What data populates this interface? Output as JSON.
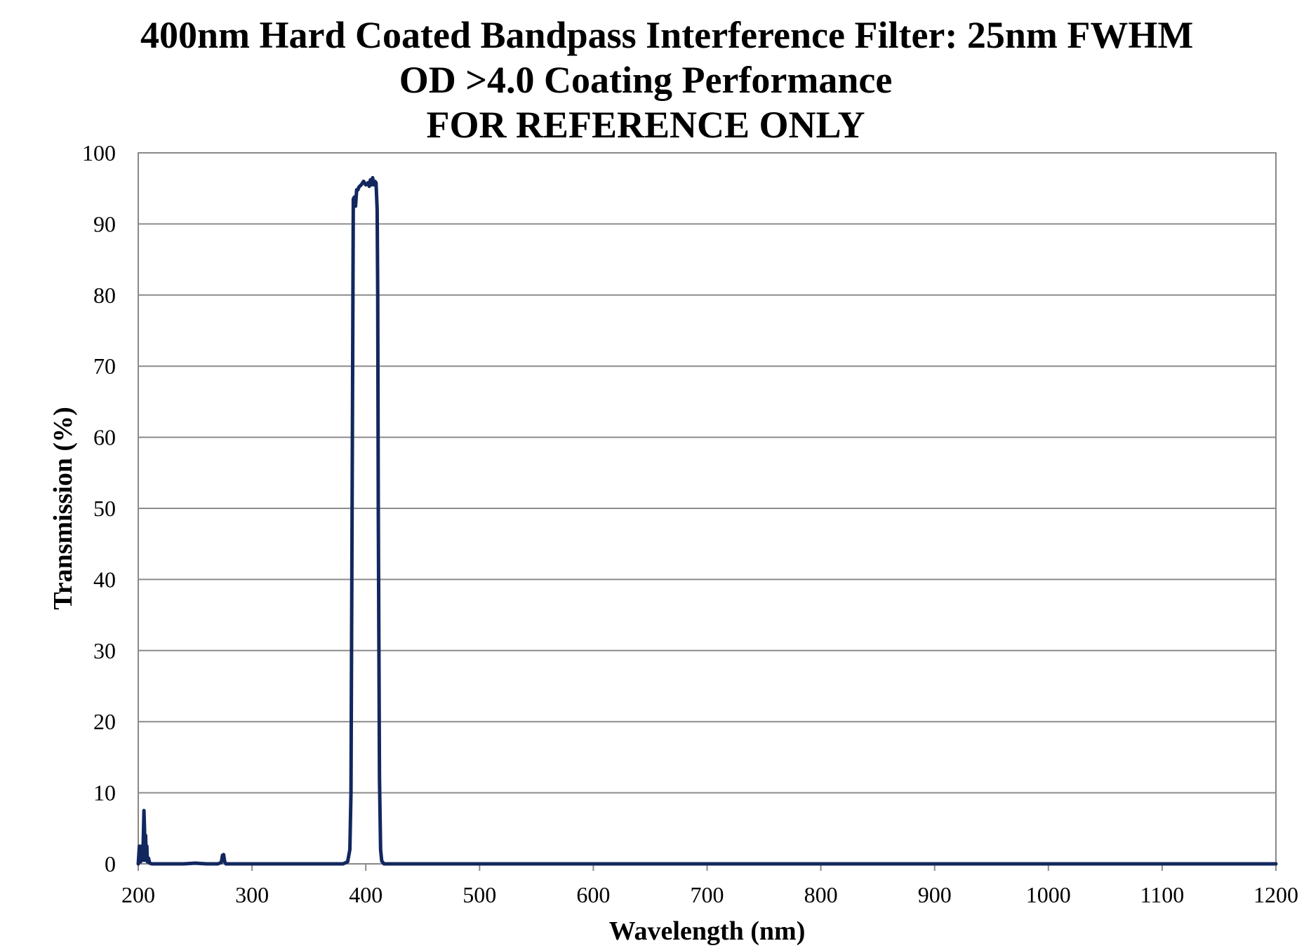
{
  "chart_data": {
    "type": "line",
    "title": [
      "400nm Hard Coated Bandpass Interference Filter: 25nm FWHM",
      "OD >4.0 Coating Performance",
      "FOR REFERENCE ONLY"
    ],
    "xlabel": "Wavelength (nm)",
    "ylabel": "Transmission (%)",
    "xlim": [
      200,
      1200
    ],
    "ylim": [
      0,
      100
    ],
    "xticks": [
      200,
      300,
      400,
      500,
      600,
      700,
      800,
      900,
      1000,
      1100,
      1200
    ],
    "yticks": [
      0,
      10,
      20,
      30,
      40,
      50,
      60,
      70,
      80,
      90,
      100
    ],
    "grid": "horizontal",
    "legend": "none",
    "line_color": "#12275e",
    "series": [
      {
        "x": [
          200,
          201,
          202,
          203,
          204,
          205,
          205.5,
          206,
          206.5,
          207,
          207.5,
          208,
          209,
          210,
          212,
          220,
          240,
          250,
          260,
          270,
          273,
          274,
          275,
          276,
          277,
          280,
          300,
          350,
          380,
          384,
          386,
          387,
          388,
          389,
          390,
          391,
          392,
          393,
          394,
          396,
          398,
          400,
          402,
          403,
          404,
          405,
          406,
          407,
          408,
          409,
          410,
          410.5,
          411,
          412,
          413,
          414,
          416,
          420,
          450,
          500,
          600,
          700,
          800,
          900,
          1000,
          1100,
          1200
        ],
        "y": [
          0,
          2.5,
          0.3,
          2.5,
          0.5,
          7.5,
          5,
          0.5,
          4,
          0.5,
          2.5,
          0.3,
          0.8,
          0.1,
          0,
          0,
          0,
          0.1,
          0,
          0,
          0.2,
          1.2,
          1.3,
          0.3,
          0,
          0,
          0,
          0,
          0,
          0.3,
          2,
          10,
          50,
          93.5,
          93.8,
          92.5,
          94.8,
          94.8,
          95.2,
          95.5,
          96,
          95.5,
          95.8,
          95.3,
          96.2,
          95.5,
          96.5,
          95.5,
          96,
          95.8,
          92,
          80,
          50,
          12,
          2,
          0.4,
          0,
          0,
          0,
          0,
          0,
          0,
          0,
          0,
          0,
          0,
          0
        ]
      }
    ]
  }
}
